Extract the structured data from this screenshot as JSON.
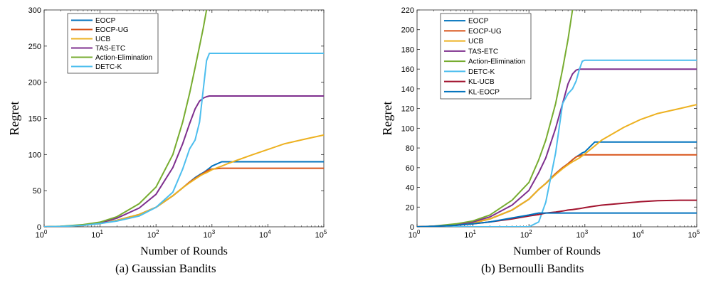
{
  "captions": {
    "left": "(a)  Gaussian Bandits",
    "right": "(b)  Bernoulli Bandits"
  },
  "chart_data": [
    {
      "type": "line",
      "title": "",
      "xlabel": "Number of Rounds",
      "ylabel": "Regret",
      "x_scale": "log",
      "xlim": [
        1,
        100000
      ],
      "ylim": [
        0,
        300
      ],
      "x_tick_labels": [
        "10^0",
        "10^1",
        "10^2",
        "10^3",
        "10^4",
        "10^5"
      ],
      "y_ticks": [
        0,
        50,
        100,
        150,
        200,
        250,
        300
      ],
      "grid": false,
      "legend_position": "top-left",
      "x": [
        1,
        2,
        5,
        10,
        20,
        50,
        100,
        200,
        300,
        400,
        500,
        600,
        700,
        800,
        900,
        1000,
        1500,
        2000,
        5000,
        10000,
        20000,
        50000,
        100000
      ],
      "series": [
        {
          "name": "EOCP",
          "color": "#0072BD",
          "values": [
            0,
            0.5,
            2,
            4.5,
            9,
            17,
            27,
            43,
            54,
            62,
            68,
            72,
            75,
            78,
            81,
            84,
            90,
            90,
            90,
            90,
            90,
            90,
            90
          ]
        },
        {
          "name": "EOCP-UG",
          "color": "#D95319",
          "values": [
            0,
            0.5,
            2,
            4.5,
            9,
            17,
            27,
            43,
            54,
            62,
            67,
            71,
            74,
            77,
            79,
            80,
            81,
            81,
            81,
            81,
            81,
            81,
            81
          ]
        },
        {
          "name": "UCB",
          "color": "#EDB120",
          "values": [
            0,
            0.5,
            2,
            4.5,
            9,
            17,
            27,
            43,
            54,
            61,
            66,
            70,
            73,
            75,
            77,
            79,
            84,
            88,
            99,
            107,
            115,
            122,
            127
          ]
        },
        {
          "name": "TAS-ETC",
          "color": "#7E2F8E",
          "values": [
            0,
            0.6,
            2.5,
            5.5,
            12,
            26,
            45,
            82,
            115,
            143,
            163,
            174,
            178,
            180,
            181,
            181,
            181,
            181,
            181,
            181,
            181,
            181,
            181
          ]
        },
        {
          "name": "Action-Elimination",
          "color": "#77AC30",
          "values": [
            0,
            0.7,
            3,
            6.5,
            14,
            32,
            55,
            100,
            145,
            185,
            220,
            250,
            275,
            300,
            null,
            null,
            null,
            null,
            null,
            null,
            null,
            null,
            null
          ]
        },
        {
          "name": "DETC-K",
          "color": "#4DBEEE",
          "values": [
            0,
            0.5,
            2,
            4.5,
            8,
            15,
            27,
            48,
            80,
            108,
            120,
            145,
            190,
            230,
            240,
            240,
            240,
            240,
            240,
            240,
            240,
            240,
            240
          ]
        }
      ]
    },
    {
      "type": "line",
      "title": "",
      "xlabel": "Number of Rounds",
      "ylabel": "Regret",
      "x_scale": "log",
      "xlim": [
        1,
        100000
      ],
      "ylim": [
        0,
        220
      ],
      "x_tick_labels": [
        "10^0",
        "10^1",
        "10^2",
        "10^3",
        "10^4",
        "10^5"
      ],
      "y_ticks": [
        0,
        20,
        40,
        60,
        80,
        100,
        120,
        140,
        160,
        180,
        200,
        220
      ],
      "grid": false,
      "legend_position": "top-left",
      "x": [
        1,
        2,
        5,
        10,
        20,
        50,
        100,
        150,
        200,
        300,
        400,
        500,
        600,
        700,
        800,
        900,
        1000,
        1500,
        2000,
        5000,
        10000,
        20000,
        50000,
        100000
      ],
      "series": [
        {
          "name": "EOCP",
          "color": "#0072BD",
          "values": [
            0,
            0.5,
            2,
            4,
            8,
            17,
            28,
            38,
            44,
            54,
            60,
            64,
            68,
            71,
            73,
            75,
            76,
            86,
            86,
            86,
            86,
            86,
            86,
            86
          ]
        },
        {
          "name": "EOCP-UG",
          "color": "#D95319",
          "values": [
            0,
            0.5,
            2,
            4,
            8,
            17,
            28,
            38,
            44,
            54,
            60,
            64,
            68,
            71,
            72,
            73,
            73,
            73,
            73,
            73,
            73,
            73,
            73,
            73
          ]
        },
        {
          "name": "UCB",
          "color": "#EDB120",
          "values": [
            0,
            0.5,
            2,
            4,
            8,
            17,
            28,
            38,
            44,
            53,
            59,
            63,
            66,
            68,
            70,
            72,
            74,
            82,
            88,
            101,
            109,
            115,
            120,
            124
          ]
        },
        {
          "name": "TAS-ETC",
          "color": "#7E2F8E",
          "values": [
            0,
            0.6,
            2.5,
            5,
            10,
            22,
            37,
            55,
            70,
            100,
            125,
            145,
            155,
            159,
            160,
            160,
            160,
            160,
            160,
            160,
            160,
            160,
            160,
            160
          ]
        },
        {
          "name": "Action-Elimination",
          "color": "#77AC30",
          "values": [
            0,
            0.7,
            3,
            6,
            12,
            27,
            45,
            68,
            88,
            125,
            160,
            190,
            220,
            null,
            null,
            null,
            null,
            null,
            null,
            null,
            null,
            null,
            null,
            null
          ]
        },
        {
          "name": "DETC-K",
          "color": "#4DBEEE",
          "values": [
            0,
            0,
            0,
            0,
            0,
            0,
            0,
            5,
            25,
            75,
            125,
            135,
            140,
            148,
            160,
            168,
            169,
            169,
            169,
            169,
            169,
            169,
            169,
            169
          ]
        },
        {
          "name": "KL-UCB",
          "color": "#A2142F",
          "values": [
            0,
            0.5,
            1.5,
            3,
            5,
            8,
            11,
            12.5,
            14,
            15,
            16,
            17,
            17.5,
            18,
            18.5,
            19,
            19.5,
            21,
            22,
            24,
            25.5,
            26.5,
            27,
            27
          ]
        },
        {
          "name": "KL-EOCP",
          "color": "#0072BD",
          "values": [
            0,
            0.5,
            1.5,
            3,
            5,
            9,
            12,
            14,
            14,
            14,
            14,
            14,
            14,
            14,
            14,
            14,
            14,
            14,
            14,
            14,
            14,
            14,
            14,
            14
          ]
        }
      ]
    }
  ]
}
